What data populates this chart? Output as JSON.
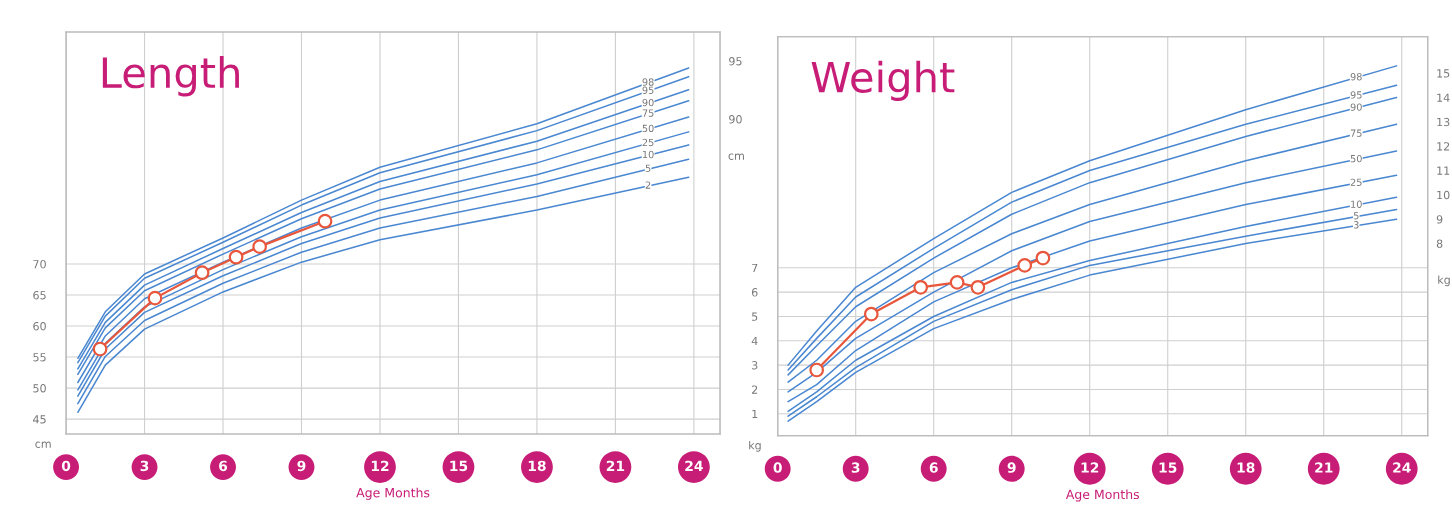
{
  "chart_data": [
    {
      "type": "line",
      "title": "Length",
      "xlabel": "Age Months",
      "ylabel": "cm",
      "y2label": "cm",
      "xlim": [
        0,
        25
      ],
      "xticks": [
        0,
        3,
        6,
        9,
        12,
        15,
        18,
        21,
        24
      ],
      "ylim": [
        42.6,
        107.4
      ],
      "yticks": [
        45,
        50,
        55,
        60,
        65,
        70
      ],
      "y2lim": [
        62.9,
        97.5
      ],
      "y2ticks": [
        90,
        95
      ],
      "grid": true,
      "x": [
        0.45,
        1.5,
        3,
        6,
        9,
        12,
        18,
        23.8
      ],
      "series": [
        {
          "name": "98",
          "color": "#4a87d1",
          "marker": "none",
          "values": [
            54.8,
            62.3,
            68.4,
            74.2,
            80.3,
            85.6,
            92.6,
            101.6
          ]
        },
        {
          "name": "95",
          "color": "#4a87d1",
          "marker": "none",
          "values": [
            54.1,
            61.6,
            67.7,
            73.5,
            79.5,
            84.7,
            91.5,
            100.2
          ]
        },
        {
          "name": "90",
          "color": "#4a87d1",
          "marker": "none",
          "values": [
            53.1,
            60.6,
            66.6,
            72.5,
            78.3,
            83.3,
            89.8,
            98.1
          ]
        },
        {
          "name": "75",
          "color": "#4a87d1",
          "marker": "none",
          "values": [
            52.2,
            59.7,
            65.7,
            71.6,
            77.3,
            82.1,
            88.4,
            96.3
          ]
        },
        {
          "name": "50",
          "color": "#4a87d1",
          "marker": "none",
          "values": [
            50.9,
            58.4,
            64.4,
            70.3,
            75.8,
            80.3,
            86.3,
            93.7
          ]
        },
        {
          "name": "25",
          "color": "#4a87d1",
          "marker": "none",
          "values": [
            49.7,
            57.2,
            63.1,
            69.1,
            74.4,
            78.7,
            84.4,
            91.3
          ]
        },
        {
          "name": "10",
          "color": "#4a87d1",
          "marker": "none",
          "values": [
            48.7,
            56.3,
            62.2,
            68.1,
            73.3,
            77.4,
            82.9,
            89.2
          ]
        },
        {
          "name": "5",
          "color": "#4a87d1",
          "marker": "none",
          "values": [
            47.5,
            55.1,
            60.9,
            66.9,
            71.9,
            75.8,
            80.9,
            86.9
          ]
        },
        {
          "name": "2",
          "color": "#4a87d1",
          "marker": "none",
          "values": [
            46.1,
            53.7,
            59.5,
            65.5,
            70.3,
            73.9,
            78.7,
            84.0
          ]
        },
        {
          "color": "#e8573c",
          "marker": "circle",
          "x": [
            1.3,
            3.4,
            5.2,
            6.5,
            7.4,
            9.9
          ],
          "values": [
            56.3,
            64.5,
            68.6,
            71.1,
            72.8,
            76.9
          ]
        }
      ]
    },
    {
      "type": "line",
      "title": "Weight",
      "xlabel": "Age Months",
      "ylabel": "kg",
      "y2label": "kg",
      "xlim": [
        0,
        25
      ],
      "xticks": [
        0,
        3,
        6,
        9,
        12,
        15,
        18,
        21,
        24
      ],
      "ylim": [
        0.1,
        16.5
      ],
      "yticks": [
        1,
        2,
        3,
        4,
        5,
        6,
        7
      ],
      "y2lim": [
        0.1,
        16.5
      ],
      "y2ticks": [
        8,
        9,
        10,
        11,
        12,
        13,
        14,
        15
      ],
      "grid": true,
      "x": [
        0.4,
        1.5,
        3,
        6,
        9,
        12,
        18,
        23.8
      ],
      "series": [
        {
          "name": "98",
          "color": "#4a87d1",
          "marker": "none",
          "values": [
            3.0,
            4.4,
            6.2,
            8.2,
            10.1,
            11.4,
            13.5,
            15.3
          ]
        },
        {
          "name": "95",
          "color": "#4a87d1",
          "marker": "none",
          "values": [
            2.8,
            4.1,
            5.8,
            7.8,
            9.7,
            11.0,
            12.9,
            14.5
          ]
        },
        {
          "name": "90",
          "color": "#4a87d1",
          "marker": "none",
          "values": [
            2.6,
            3.8,
            5.4,
            7.4,
            9.2,
            10.5,
            12.4,
            14.0
          ]
        },
        {
          "name": "75",
          "color": "#4a87d1",
          "marker": "none",
          "values": [
            2.3,
            3.2,
            4.8,
            6.8,
            8.4,
            9.6,
            11.4,
            12.9
          ]
        },
        {
          "name": "50",
          "color": "#4a87d1",
          "marker": "none",
          "values": [
            1.9,
            2.7,
            4.1,
            6.0,
            7.7,
            8.9,
            10.5,
            11.8
          ]
        },
        {
          "name": "25",
          "color": "#4a87d1",
          "marker": "none",
          "values": [
            1.5,
            2.2,
            3.6,
            5.6,
            7.0,
            8.1,
            9.6,
            10.8
          ]
        },
        {
          "name": "10",
          "color": "#4a87d1",
          "marker": "none",
          "values": [
            1.1,
            1.9,
            3.2,
            5.0,
            6.4,
            7.3,
            8.7,
            9.9
          ]
        },
        {
          "name": "5",
          "color": "#4a87d1",
          "marker": "none",
          "values": [
            0.9,
            1.7,
            2.9,
            4.8,
            6.1,
            7.1,
            8.3,
            9.4
          ]
        },
        {
          "name": "3",
          "color": "#4a87d1",
          "marker": "none",
          "values": [
            0.7,
            1.5,
            2.7,
            4.5,
            5.7,
            6.7,
            8.0,
            9.0
          ]
        },
        {
          "color": "#e8573c",
          "marker": "circle",
          "x": [
            1.5,
            3.6,
            5.5,
            6.9,
            7.7,
            9.5,
            10.2
          ],
          "values": [
            2.8,
            5.1,
            6.2,
            6.4,
            6.2,
            7.1,
            7.4
          ]
        }
      ]
    }
  ]
}
